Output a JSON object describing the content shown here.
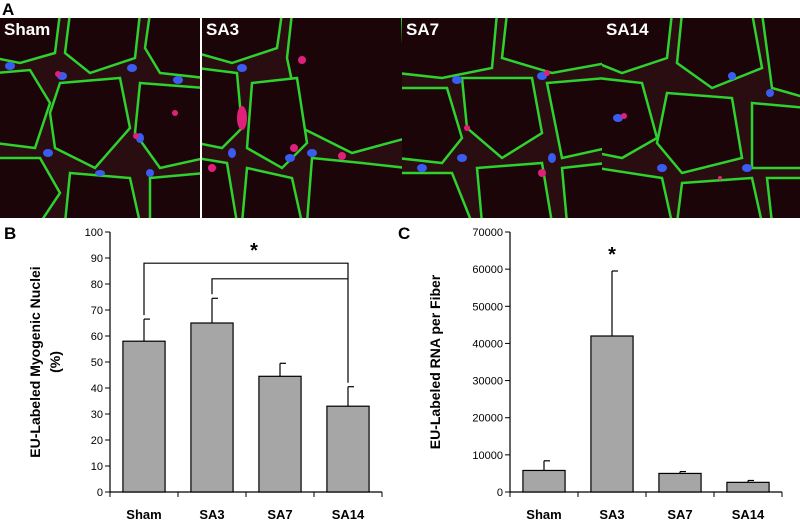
{
  "figure": {
    "panel_a_letter": "A",
    "panel_b_letter": "B",
    "panel_c_letter": "C",
    "micrographs": [
      {
        "label": "Sham"
      },
      {
        "label": "SA3"
      },
      {
        "label": "SA7"
      },
      {
        "label": "SA14"
      }
    ],
    "colors": {
      "bar_fill": "#a6a6a6",
      "membrane": "#2fd12f",
      "nuclei": "#3a5cf0",
      "eu_label": "#e0207a",
      "tissue_bg": "#2a0d10"
    }
  },
  "chart_data": [
    {
      "type": "bar",
      "id": "B",
      "categories": [
        "Sham",
        "SA3",
        "SA7",
        "SA14"
      ],
      "values": [
        58,
        65,
        44.5,
        33
      ],
      "errors": [
        8.5,
        9.5,
        5,
        7.5
      ],
      "ylabel": "EU-Labeled Myogenic Nuclei (%)",
      "ylabel_lines": [
        "EU-Labeled Myogenic Nuclei",
        "(%)"
      ],
      "ylim": [
        0,
        100
      ],
      "yticks": [
        0,
        10,
        20,
        30,
        40,
        50,
        60,
        70,
        80,
        90,
        100
      ],
      "significance": [
        {
          "from": "Sham",
          "to": "SA14",
          "label": "*"
        },
        {
          "from": "SA3",
          "to": "SA14",
          "label": ""
        }
      ]
    },
    {
      "type": "bar",
      "id": "C",
      "categories": [
        "Sham",
        "SA3",
        "SA7",
        "SA14"
      ],
      "values": [
        5800,
        42000,
        5000,
        2600
      ],
      "errors": [
        2600,
        17500,
        500,
        500
      ],
      "ylabel": "EU-Labeled RNA per Fiber",
      "ylim": [
        0,
        70000
      ],
      "yticks": [
        0,
        10000,
        20000,
        30000,
        40000,
        50000,
        60000,
        70000
      ],
      "annotations": [
        {
          "category": "SA3",
          "label": "*"
        }
      ]
    }
  ]
}
